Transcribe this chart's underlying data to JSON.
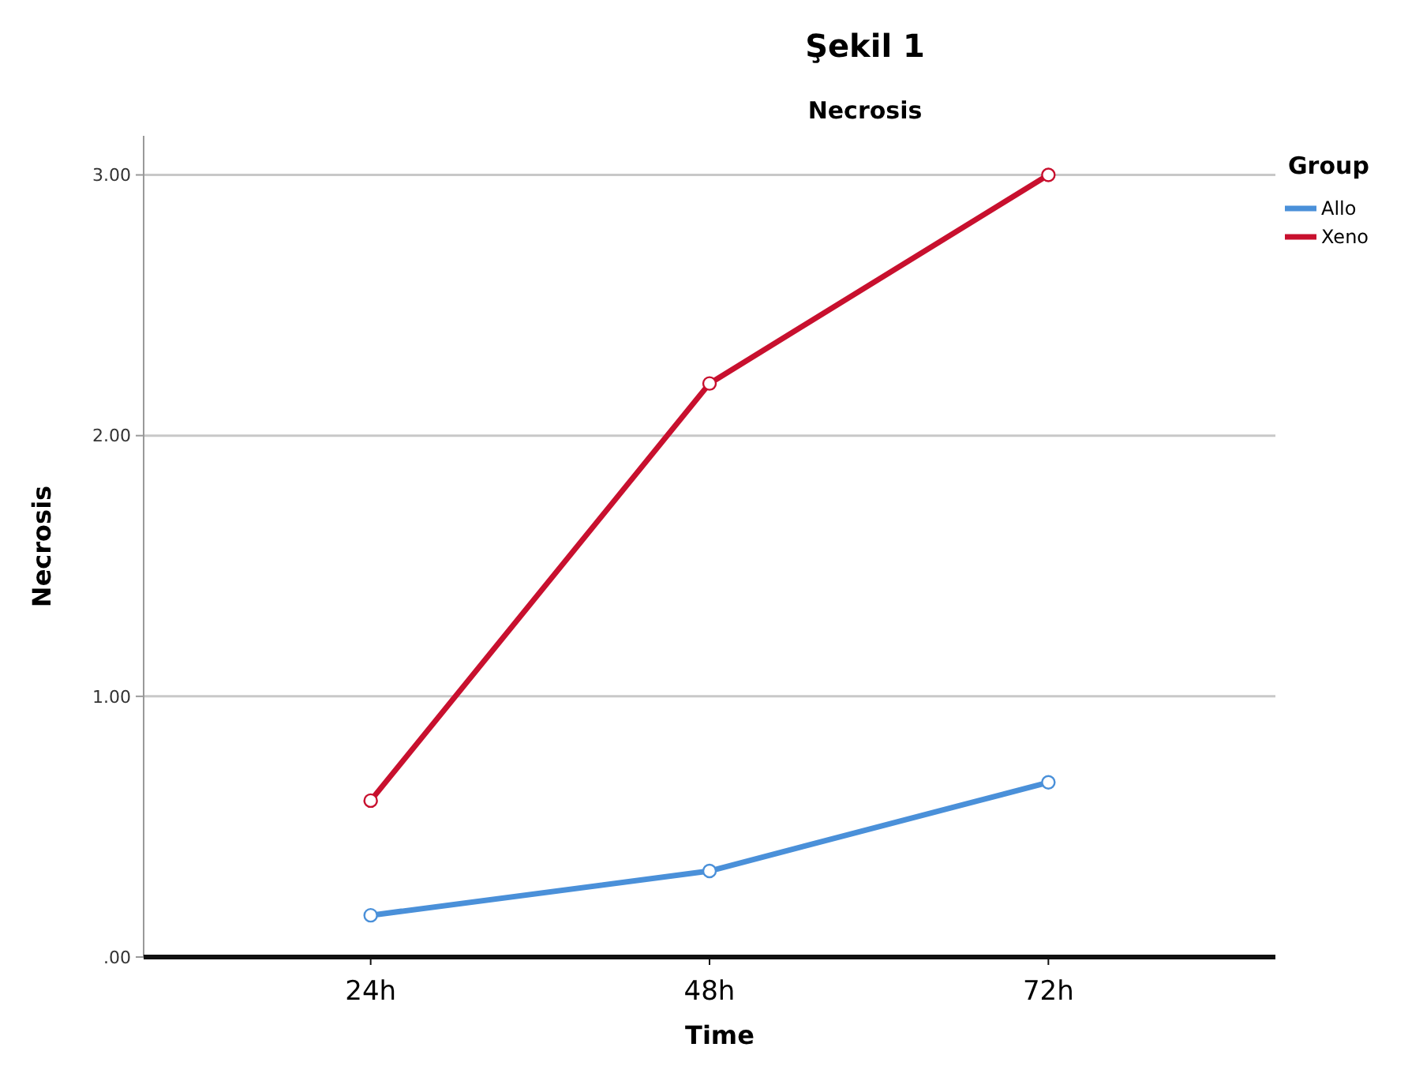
{
  "chart_data": {
    "type": "line",
    "title": "Şekil 1",
    "subtitle": "Necrosis",
    "xlabel": "Time",
    "ylabel": "Necrosis",
    "legend_title": "Group",
    "categories": [
      "24h",
      "48h",
      "72h"
    ],
    "series": [
      {
        "name": "Allo",
        "color": "#4a90d9",
        "values": [
          0.16,
          0.33,
          0.67
        ]
      },
      {
        "name": "Xeno",
        "color": "#c8102e",
        "values": [
          0.6,
          2.2,
          3.0
        ]
      }
    ],
    "ylim": [
      0,
      3.15
    ],
    "yticks": [
      {
        "value": 0,
        "label": ".00"
      },
      {
        "value": 1,
        "label": "1.00"
      },
      {
        "value": 2,
        "label": "2.00"
      },
      {
        "value": 3,
        "label": "3.00"
      }
    ],
    "grid": "y",
    "legend": "top right",
    "marker": "circle",
    "line_style": "solid"
  }
}
